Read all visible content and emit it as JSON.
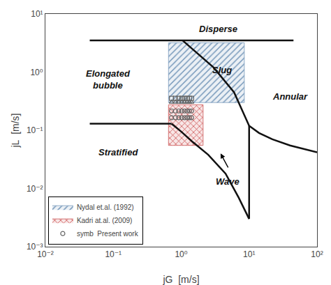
{
  "chart_data": {
    "type": "line",
    "xlabel": "jG  [m/s]",
    "ylabel": "jL  [m/s]",
    "log": true,
    "grid": false,
    "legend": "lower left",
    "xlim": [
      0.01,
      100
    ],
    "ylim": [
      0.001,
      10
    ],
    "xticks": [
      {
        "value": 0.01,
        "label": "10⁻²"
      },
      {
        "value": 0.1,
        "label": "10⁻¹"
      },
      {
        "value": 1,
        "label": "10⁰"
      },
      {
        "value": 10,
        "label": "10¹"
      },
      {
        "value": 100,
        "label": "10²"
      }
    ],
    "yticks": [
      {
        "value": 0.001,
        "label": "10⁻³"
      },
      {
        "value": 0.01,
        "label": "10⁻²"
      },
      {
        "value": 0.1,
        "label": "10⁻¹"
      },
      {
        "value": 1,
        "label": "10⁰"
      },
      {
        "value": 10,
        "label": "10¹"
      }
    ],
    "series": [
      {
        "name": "Nydal et.al. (1992)",
        "type": "rect",
        "marker": "diagonal",
        "color": "#7799bb",
        "x": [
          0.65,
          8.5
        ],
        "y": [
          0.3,
          3.2
        ]
      },
      {
        "name": "Kadri at.al. (2009)",
        "type": "rect",
        "marker": "cross",
        "color": "#cc5555",
        "x": [
          0.65,
          2.1
        ],
        "y": [
          0.055,
          0.275
        ]
      },
      {
        "type": "line",
        "color": "#111111",
        "x": [
          0.045,
          45.0
        ],
        "y": [
          3.5,
          3.5
        ]
      },
      {
        "type": "line",
        "color": "#111111",
        "x": [
          0.045,
          0.72
        ],
        "y": [
          0.13,
          0.13
        ]
      },
      {
        "type": "line",
        "color": "#111111",
        "x": [
          1.05,
          1.3,
          1.8,
          3.0,
          6.0,
          10.0,
          14.0,
          22.0,
          40.0,
          80.0,
          100.0
        ],
        "y": [
          3.5,
          2.8,
          2.0,
          1.2,
          0.45,
          0.12,
          0.09,
          0.07,
          0.055,
          0.045,
          0.042
        ]
      },
      {
        "type": "line",
        "color": "#111111",
        "x": [
          0.72,
          1.0,
          1.5,
          2.5,
          4.5,
          7.0,
          10.0
        ],
        "y": [
          0.13,
          0.095,
          0.062,
          0.038,
          0.018,
          0.007,
          0.003
        ]
      },
      {
        "type": "line",
        "color": "#111111",
        "x": [
          10.0,
          10.0
        ],
        "y": [
          0.003,
          0.12
        ]
      },
      {
        "type": "scatter",
        "marker": "triangle",
        "color": "#666666",
        "x": [
          0.72,
          0.82,
          0.92,
          1.02,
          1.12,
          1.22,
          1.32,
          1.42
        ],
        "y": [
          0.305,
          0.305,
          0.305,
          0.305,
          0.305,
          0.305,
          0.305,
          0.305
        ]
      },
      {
        "type": "scatter",
        "marker": "square",
        "color": "#666666",
        "x": [
          0.72,
          0.82,
          0.92,
          1.02,
          1.12,
          1.22,
          1.32,
          1.42
        ],
        "y": [
          0.355,
          0.355,
          0.355,
          0.355,
          0.355,
          0.355,
          0.355,
          0.355
        ]
      },
      {
        "name": "symb  Present work",
        "type": "scatter",
        "marker": "circle",
        "color": "#666666",
        "x": [
          0.72,
          0.82,
          0.92,
          1.02,
          1.12,
          1.22,
          1.32,
          1.42
        ],
        "y": [
          0.215,
          0.215,
          0.215,
          0.215,
          0.215,
          0.215,
          0.215,
          0.215
        ]
      },
      {
        "type": "scatter",
        "marker": "circle",
        "color": "#666666",
        "x": [
          0.72,
          0.82,
          0.92,
          1.02,
          1.12,
          1.22,
          1.32,
          1.42
        ],
        "y": [
          0.165,
          0.165,
          0.165,
          0.165,
          0.165,
          0.165,
          0.165,
          0.165
        ]
      }
    ],
    "annotations": [
      {
        "text": "Disperse",
        "x": 3.5,
        "y": 5.5
      },
      {
        "text": "Slug",
        "x": 4.0,
        "y": 1.1
      },
      {
        "text": "Elongated\nbubble",
        "x": 0.085,
        "y": 0.75
      },
      {
        "text": "Annular",
        "x": 40.0,
        "y": 0.38
      },
      {
        "text": "Stratified",
        "x": 0.12,
        "y": 0.042
      },
      {
        "text": "Wave",
        "x": 4.8,
        "y": 0.013
      }
    ],
    "arrows": [
      {
        "from": [
          5.0,
          0.022
        ],
        "to": [
          3.8,
          0.04
        ]
      }
    ],
    "label_color": "#111111",
    "background": "#ffffff"
  }
}
